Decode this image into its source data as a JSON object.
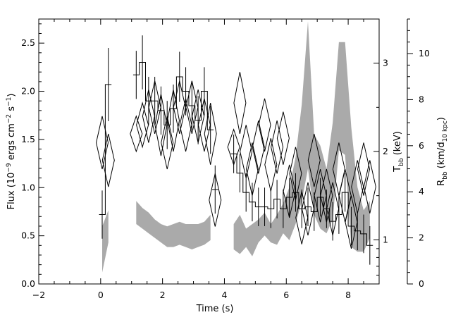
{
  "chart_data": {
    "type": "line",
    "xlabel": "Time (s)",
    "ylabel": "Flux (10⁻⁹ ergs cm⁻² s⁻¹)",
    "ylabel_parts": {
      "a": "Flux (10",
      "a_sup": "−9",
      "b": " ergs cm",
      "b_sup": "−2",
      "c": " s",
      "c_sup": "−1",
      "d": ")"
    },
    "ylabel_right_inner": "T_bb (keV)",
    "ylabel_right_inner_parts": {
      "main": "T",
      "sub": "bb",
      "rest": " (keV)"
    },
    "ylabel_right_outer": "R_bb (km/d_10 kpc)",
    "ylabel_right_outer_parts": {
      "main": "R",
      "sub": "bb",
      "mid": " (km/d",
      "sub2": "10 kpc",
      "end": ")"
    },
    "xlim": [
      -2,
      9
    ],
    "ylim": [
      0,
      2.75
    ],
    "kT_lim": [
      0.5,
      3.5
    ],
    "R_lim": [
      0,
      11.5
    ],
    "xticks": [
      -2,
      0,
      2,
      4,
      6,
      8
    ],
    "yticks": [
      0.0,
      0.5,
      1.0,
      1.5,
      2.0,
      2.5
    ],
    "ytick_labels": [
      "0.0",
      "0.5",
      "1.0",
      "1.5",
      "2.0",
      "2.5"
    ],
    "kT_ticks": [
      1,
      2,
      3
    ],
    "R_ticks": [
      0,
      2,
      4,
      6,
      8,
      10
    ],
    "series": [
      {
        "role": "flux",
        "style": "step with error bars",
        "x": [
          0.05,
          0.25,
          1.15,
          1.35,
          1.55,
          1.75,
          1.95,
          2.15,
          2.35,
          2.55,
          2.75,
          2.95,
          3.15,
          3.35,
          3.55,
          3.7,
          4.3,
          4.5,
          4.7,
          4.9,
          5.1,
          5.3,
          5.5,
          5.7,
          5.9,
          6.1,
          6.3,
          6.5,
          6.7,
          6.9,
          7.1,
          7.3,
          7.5,
          7.7,
          7.9,
          8.1,
          8.3,
          8.5,
          8.7
        ],
        "y": [
          0.72,
          2.07,
          2.17,
          2.3,
          1.9,
          1.9,
          1.8,
          1.65,
          1.82,
          2.15,
          2.0,
          1.85,
          1.7,
          2.0,
          1.6,
          0.98,
          1.35,
          1.15,
          0.95,
          0.85,
          0.8,
          0.8,
          0.78,
          0.88,
          0.78,
          0.9,
          0.95,
          0.78,
          0.8,
          0.75,
          0.9,
          0.78,
          0.65,
          0.72,
          0.95,
          0.6,
          0.55,
          0.52,
          0.4
        ],
        "yerr": [
          0.25,
          0.38,
          0.25,
          0.28,
          0.25,
          0.25,
          0.25,
          0.25,
          0.25,
          0.26,
          0.25,
          0.25,
          0.25,
          0.25,
          0.25,
          0.25,
          0.2,
          0.2,
          0.2,
          0.2,
          0.2,
          0.2,
          0.2,
          0.2,
          0.2,
          0.2,
          0.2,
          0.2,
          0.2,
          0.2,
          0.2,
          0.2,
          0.2,
          0.2,
          0.2,
          0.2,
          0.2,
          0.2,
          0.2
        ]
      },
      {
        "role": "kT",
        "style": "diamonds",
        "x": [
          0.05,
          0.25,
          1.15,
          1.35,
          1.55,
          1.75,
          1.95,
          2.15,
          2.35,
          2.55,
          2.75,
          2.95,
          3.15,
          3.35,
          3.55,
          3.7,
          4.3,
          4.5,
          4.7,
          4.9,
          5.1,
          5.3,
          5.5,
          5.7,
          5.9,
          6.1,
          6.3,
          6.5,
          6.7,
          6.9,
          7.1,
          7.3,
          7.5,
          7.7,
          7.9,
          8.1,
          8.3,
          8.5,
          8.7
        ],
        "y": [
          2.1,
          1.9,
          2.2,
          2.3,
          2.4,
          2.5,
          2.3,
          2.1,
          2.35,
          2.5,
          2.3,
          2.5,
          2.4,
          2.3,
          2.2,
          1.45,
          2.05,
          2.55,
          2.0,
          1.8,
          2.05,
          2.3,
          1.85,
          2.05,
          2.15,
          1.55,
          1.75,
          1.25,
          1.35,
          1.9,
          1.5,
          1.5,
          1.35,
          1.8,
          1.5,
          1.2,
          1.6,
          1.8,
          1.6
        ],
        "yerr": [
          0.3,
          0.3,
          0.2,
          0.25,
          0.3,
          0.3,
          0.35,
          0.3,
          0.35,
          0.3,
          0.3,
          0.3,
          0.3,
          0.3,
          0.35,
          0.3,
          0.2,
          0.35,
          0.3,
          0.3,
          0.3,
          0.3,
          0.3,
          0.3,
          0.3,
          0.3,
          0.3,
          0.3,
          0.3,
          0.3,
          0.3,
          0.3,
          0.3,
          0.3,
          0.3,
          0.3,
          0.3,
          0.3,
          0.3
        ]
      },
      {
        "role": "Rbb",
        "style": "gray band",
        "segments": [
          {
            "x": [
              0.05,
              0.25
            ],
            "lo": [
              0.5,
              1.8
            ],
            "hi": [
              2.5,
              3.2
            ]
          },
          {
            "x": [
              1.15,
              1.35,
              1.55,
              1.75,
              1.95,
              2.15,
              2.35,
              2.55,
              2.75,
              2.95,
              3.15,
              3.35,
              3.55
            ],
            "lo": [
              2.6,
              2.4,
              2.2,
              2.0,
              1.8,
              1.6,
              1.6,
              1.7,
              1.6,
              1.5,
              1.6,
              1.7,
              1.9
            ],
            "hi": [
              3.6,
              3.3,
              3.1,
              2.8,
              2.6,
              2.5,
              2.6,
              2.7,
              2.6,
              2.6,
              2.6,
              2.7,
              3.0
            ]
          },
          {
            "x": [
              4.3,
              4.5,
              4.7,
              4.9,
              5.1,
              5.3,
              5.5,
              5.7,
              5.9,
              6.1,
              6.3,
              6.5,
              6.7,
              6.9,
              7.1,
              7.3,
              7.5,
              7.7,
              7.9,
              8.1,
              8.3,
              8.5,
              8.7
            ],
            "lo": [
              1.5,
              1.3,
              1.6,
              1.2,
              1.8,
              2.1,
              1.8,
              1.7,
              2.2,
              1.9,
              2.6,
              3.6,
              5.0,
              3.0,
              2.4,
              2.2,
              2.8,
              5.8,
              5.6,
              1.6,
              1.4,
              1.4,
              2.0
            ],
            "hi": [
              2.6,
              3.0,
              2.4,
              2.6,
              2.8,
              3.1,
              2.6,
              3.0,
              3.5,
              4.2,
              5.5,
              7.8,
              11.4,
              6.5,
              6.0,
              5.0,
              7.0,
              10.5,
              10.5,
              6.8,
              4.2,
              3.2,
              3.6
            ]
          }
        ]
      }
    ],
    "colors": {
      "axes": "#000000",
      "band": "#aaaaaa",
      "background": "#ffffff"
    }
  }
}
